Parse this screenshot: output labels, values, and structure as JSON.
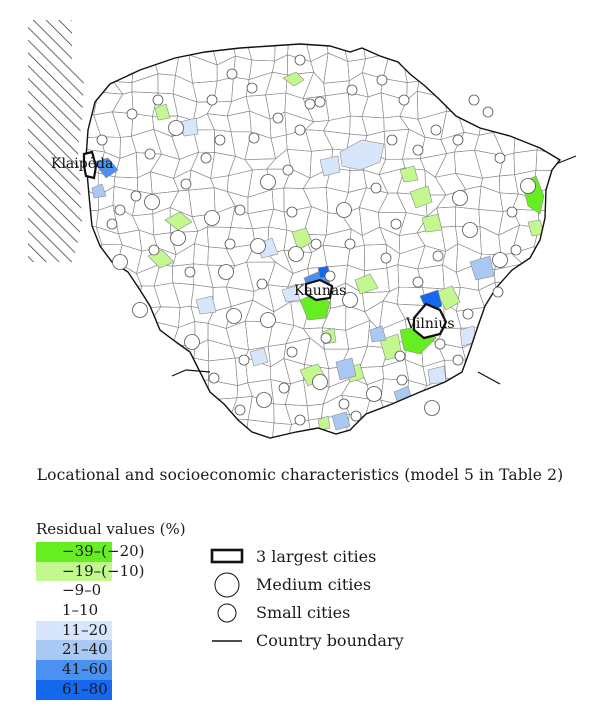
{
  "map": {
    "cities": {
      "klaipeda": "Klaipėda",
      "kaunas": "Kaunas",
      "vilnius": "Vilnius"
    },
    "colors": {
      "region_fill": "#ffffff",
      "region_stroke": "#8c8c8c",
      "boundary": "#111111",
      "hatch": "#444444",
      "class_1": "#66ee22",
      "class_2": "#c2f88e",
      "class_5": "#d8e6fb",
      "class_6": "#a9c8f3",
      "class_7": "#4a91f2",
      "class_8": "#1668ef"
    }
  },
  "caption": "Locational and socioeconomic characteristics (model 5 in Table 2)",
  "legend": {
    "title": "Residual values (%)",
    "classes": [
      {
        "label": "−39–(−20)",
        "color": "#66ee22"
      },
      {
        "label": "−19–(−10)",
        "color": "#c2f88e"
      },
      {
        "label": "−9–0",
        "color": "#ffffff"
      },
      {
        "label": "1–10",
        "color": "#ffffff"
      },
      {
        "label": "11–20",
        "color": "#d8e6fb"
      },
      {
        "label": "21–40",
        "color": "#a9c8f3"
      },
      {
        "label": "41–60",
        "color": "#4a91f2"
      },
      {
        "label": "61–80",
        "color": "#1668ef"
      }
    ],
    "symbols": [
      {
        "label": "3 largest cities",
        "icon": "city-boundary-icon"
      },
      {
        "label": "Medium cities",
        "icon": "large-circle-icon"
      },
      {
        "label": "Small cities",
        "icon": "small-circle-icon"
      },
      {
        "label": "Country boundary",
        "icon": "line-icon"
      }
    ]
  }
}
